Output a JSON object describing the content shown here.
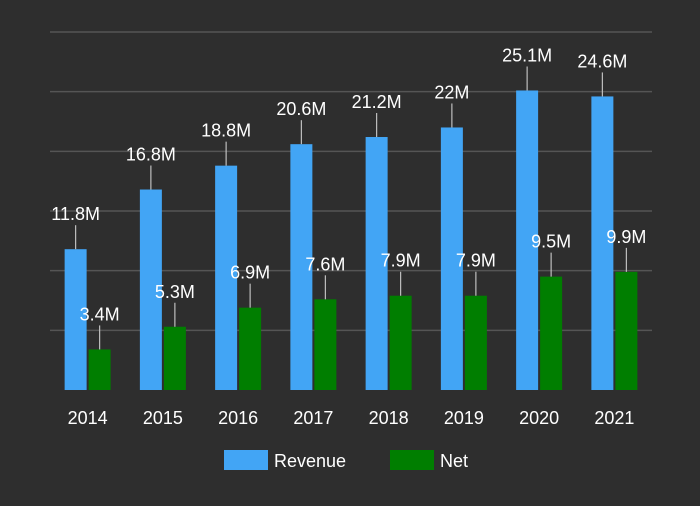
{
  "chart_data": {
    "type": "bar",
    "title": "",
    "xlabel": "",
    "ylabel": "",
    "categories": [
      "2014",
      "2015",
      "2016",
      "2017",
      "2018",
      "2019",
      "2020",
      "2021"
    ],
    "series": [
      {
        "name": "Revenue",
        "color": "#42a5f5",
        "values": [
          11.8,
          16.8,
          18.8,
          20.6,
          21.2,
          22,
          25.1,
          24.6
        ],
        "labels": [
          "11.8M",
          "16.8M",
          "18.8M",
          "20.6M",
          "21.2M",
          "22M",
          "25.1M",
          "24.6M"
        ]
      },
      {
        "name": "Net",
        "color": "#007e00",
        "values": [
          3.4,
          5.3,
          6.9,
          7.6,
          7.9,
          7.9,
          9.5,
          9.9
        ],
        "labels": [
          "3.4M",
          "5.3M",
          "6.9M",
          "7.6M",
          "7.9M",
          "7.9M",
          "9.5M",
          "9.9M"
        ]
      }
    ],
    "ylim": [
      0,
      30
    ],
    "grid": true,
    "legend": "bottom-center",
    "background": "#2e2e2e",
    "grid_color": "#555555",
    "text_color": "#ffffff"
  }
}
